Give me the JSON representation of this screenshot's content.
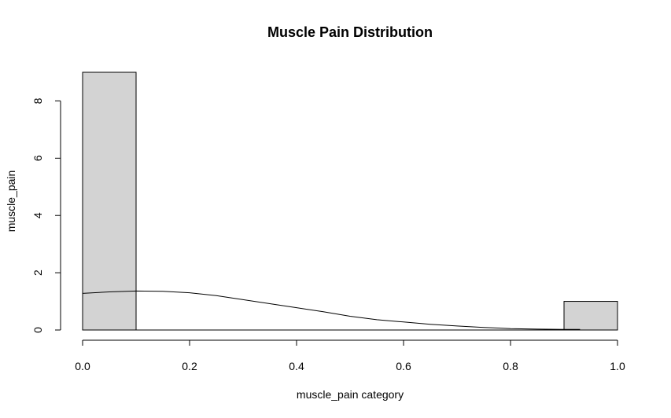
{
  "chart_data": {
    "type": "bar",
    "title": "Muscle Pain Distribution",
    "xlabel": "muscle_pain category",
    "ylabel": "muscle_pain",
    "xlim": [
      0,
      1
    ],
    "ylim": [
      0,
      9
    ],
    "x_ticks": [
      "0.0",
      "0.2",
      "0.4",
      "0.6",
      "0.8",
      "1.0"
    ],
    "y_ticks": [
      "0",
      "2",
      "4",
      "6",
      "8"
    ],
    "bar_color": "#d3d3d3",
    "bars": [
      {
        "x0": 0.0,
        "x1": 0.1,
        "value": 9
      },
      {
        "x0": 0.1,
        "x1": 0.2,
        "value": 0
      },
      {
        "x0": 0.2,
        "x1": 0.3,
        "value": 0
      },
      {
        "x0": 0.3,
        "x1": 0.4,
        "value": 0
      },
      {
        "x0": 0.4,
        "x1": 0.5,
        "value": 0
      },
      {
        "x0": 0.5,
        "x1": 0.6,
        "value": 0
      },
      {
        "x0": 0.6,
        "x1": 0.7,
        "value": 0
      },
      {
        "x0": 0.7,
        "x1": 0.8,
        "value": 0
      },
      {
        "x0": 0.8,
        "x1": 0.9,
        "value": 0
      },
      {
        "x0": 0.9,
        "x1": 1.0,
        "value": 1
      }
    ],
    "density_curve": {
      "x": [
        0.0,
        0.05,
        0.1,
        0.15,
        0.2,
        0.25,
        0.3,
        0.35,
        0.4,
        0.45,
        0.5,
        0.55,
        0.6,
        0.65,
        0.7,
        0.75,
        0.8,
        0.85,
        0.9,
        0.93
      ],
      "y": [
        1.28,
        1.33,
        1.36,
        1.35,
        1.3,
        1.2,
        1.06,
        0.92,
        0.78,
        0.64,
        0.48,
        0.36,
        0.28,
        0.2,
        0.14,
        0.09,
        0.05,
        0.03,
        0.02,
        0.02
      ]
    }
  }
}
